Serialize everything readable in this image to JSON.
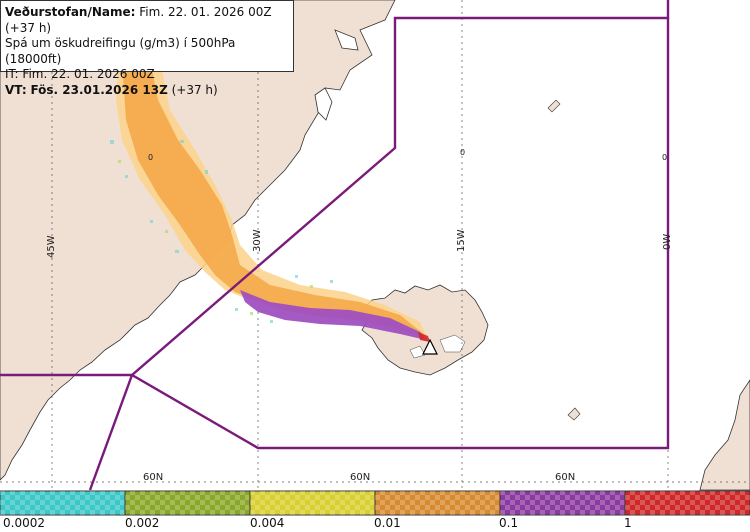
{
  "info": {
    "line1_label": "Veðurstofan/Name:",
    "line1_value": "Fim. 22. 01. 2026 00Z (+37 h)",
    "line2": "Spá um öskudreifingu (g/m3) í 500hPa (18000ft)",
    "line3": "IT: Fim. 22. 01. 2026 00Z",
    "line4_label": "VT:",
    "line4_value": "Fös. 23.01.2026 13Z",
    "line4_suffix": "(+37 h)"
  },
  "grid": {
    "lon_labels": [
      "45W",
      "30W",
      "15W",
      "0W"
    ],
    "lat_labels": [
      "60N",
      "60N",
      "60N"
    ],
    "zero_labels": [
      "0",
      "0",
      "0"
    ]
  },
  "legend": {
    "ticks": [
      "0.0002",
      "0.002",
      "0.004",
      "0.01",
      "0.1",
      "1"
    ],
    "colors": [
      "#3cc8c8",
      "#8aa828",
      "#d8d030",
      "#d88a30",
      "#8a3aa0",
      "#d02828"
    ]
  },
  "colors": {
    "land": "#f0e0d4",
    "sea": "#ffffff",
    "fir_boundary": "#7a1a7a",
    "plume_light": "#fbd28a",
    "plume_orange": "#f5a94a",
    "plume_purple": "#a050c0"
  }
}
